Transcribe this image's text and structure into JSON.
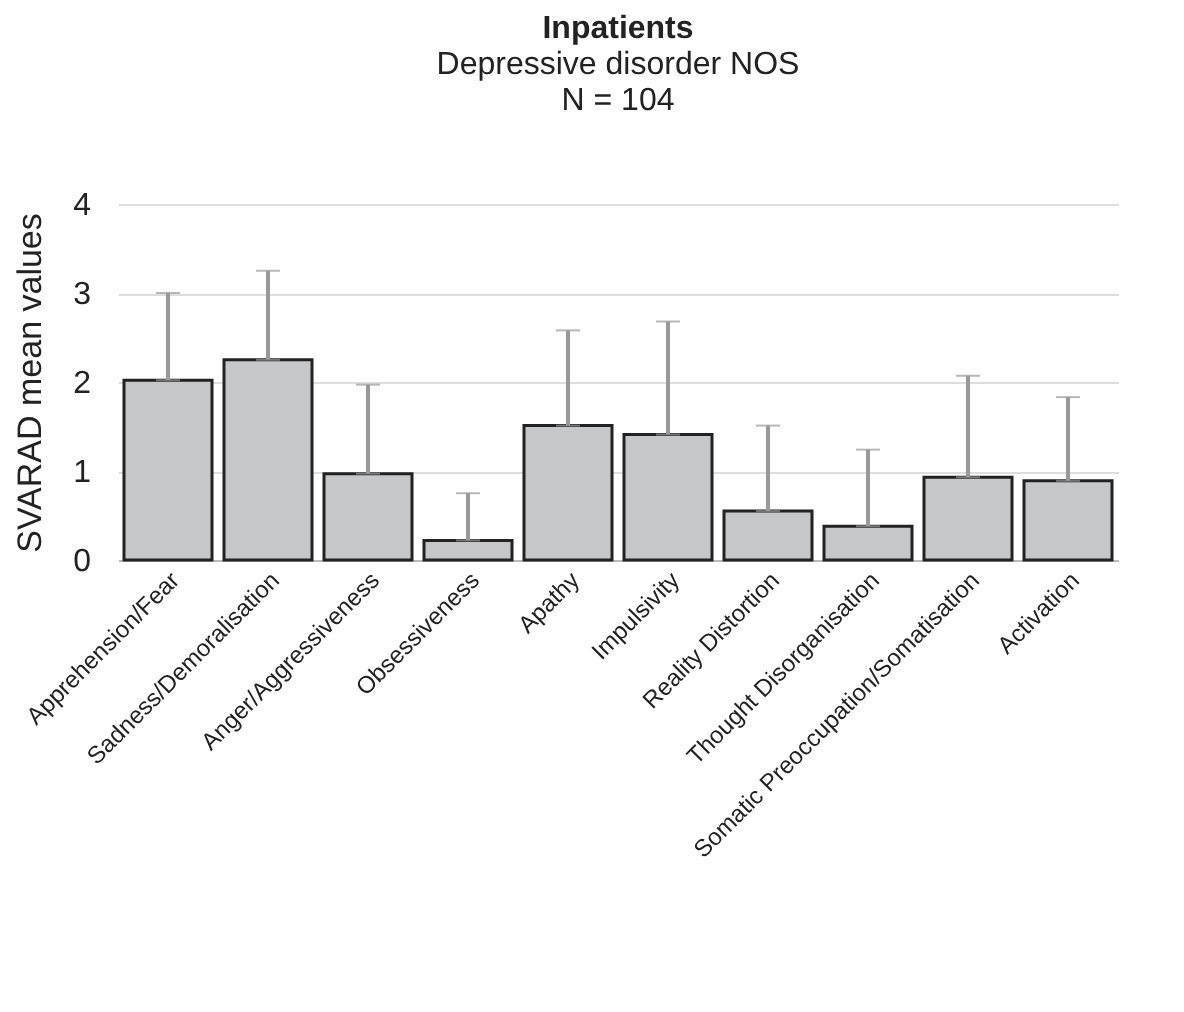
{
  "chart_data": {
    "type": "bar",
    "title": "Inpatients",
    "subtitle": "Depressive disorder NOS\nN = 104",
    "ylabel": "SVARAD mean values",
    "categories": [
      "Apprehension/Fear",
      "Sadness/Demoralisation",
      "Anger/Aggressiveness",
      "Obsessiveness",
      "Apathy",
      "Impulsivity",
      "Reality Distortion",
      "Thought Disorganisation",
      "Somatic Preoccupation/Somatisation",
      "Activation"
    ],
    "values": [
      2.02,
      2.25,
      0.97,
      0.22,
      1.51,
      1.41,
      0.55,
      0.38,
      0.93,
      0.89
    ],
    "errors": [
      [
        2.02,
        3.0
      ],
      [
        2.25,
        3.25
      ],
      [
        0.97,
        1.97
      ],
      [
        0.22,
        0.75
      ],
      [
        1.51,
        2.58
      ],
      [
        1.41,
        2.68
      ],
      [
        0.55,
        1.51
      ],
      [
        0.38,
        1.24
      ],
      [
        0.93,
        2.07
      ],
      [
        0.89,
        1.83
      ]
    ],
    "color": "#c6c7c9",
    "ylim": [
      0,
      4
    ],
    "yticks": [
      0,
      1,
      2,
      3,
      4
    ],
    "grid": "y"
  }
}
